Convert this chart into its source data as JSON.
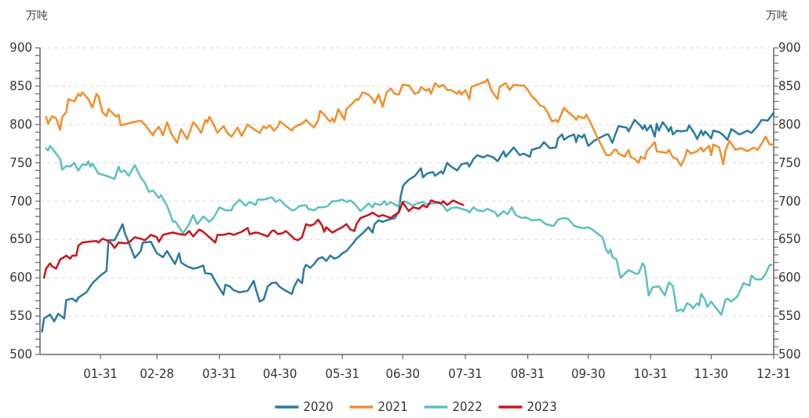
{
  "chart_data": {
    "type": "line",
    "ylabel": "万吨",
    "y2label": "万吨",
    "xlim": [
      "--01-01",
      "--12-31"
    ],
    "xticks": [
      {
        "value": "--01-31",
        "label": "01-31"
      },
      {
        "value": "--02-28",
        "label": "02-28"
      },
      {
        "value": "--03-31",
        "label": "03-31"
      },
      {
        "value": "--04-30",
        "label": "04-30"
      },
      {
        "value": "--05-31",
        "label": "05-31"
      },
      {
        "value": "--06-30",
        "label": "06-30"
      },
      {
        "value": "--07-31",
        "label": "07-31"
      },
      {
        "value": "--08-31",
        "label": "08-31"
      },
      {
        "value": "--09-30",
        "label": "09-30"
      },
      {
        "value": "--10-31",
        "label": "10-31"
      },
      {
        "value": "--11-30",
        "label": "11-30"
      },
      {
        "value": "--12-31",
        "label": "12-31"
      }
    ],
    "ylim": [
      500,
      900
    ],
    "yticks": [
      500,
      {
        "value": 510,
        "label": null
      },
      {
        "value": 520,
        "label": null
      },
      {
        "value": 530,
        "label": null
      },
      {
        "value": 540,
        "label": null
      },
      550,
      {
        "value": 560,
        "label": null
      },
      {
        "value": 570,
        "label": null
      },
      {
        "value": 580,
        "label": null
      },
      {
        "value": 590,
        "label": null
      },
      600,
      {
        "value": 610,
        "label": null
      },
      {
        "value": 620,
        "label": null
      },
      {
        "value": 630,
        "label": null
      },
      {
        "value": 640,
        "label": null
      },
      650,
      {
        "value": 660,
        "label": null
      },
      {
        "value": 670,
        "label": null
      },
      {
        "value": 680,
        "label": null
      },
      {
        "value": 690,
        "label": null
      },
      700,
      {
        "value": 710,
        "label": null
      },
      {
        "value": 720,
        "label": null
      },
      {
        "value": 730,
        "label": null
      },
      {
        "value": 740,
        "label": null
      },
      750,
      {
        "value": 760,
        "label": null
      },
      {
        "value": 770,
        "label": null
      },
      {
        "value": 780,
        "label": null
      },
      {
        "value": 790,
        "label": null
      },
      800,
      {
        "value": 810,
        "label": null
      },
      {
        "value": 820,
        "label": null
      },
      {
        "value": 830,
        "label": null
      },
      {
        "value": 840,
        "label": null
      },
      850,
      {
        "value": 860,
        "label": null
      },
      {
        "value": 870,
        "label": null
      },
      {
        "value": 880,
        "label": null
      },
      {
        "value": 890,
        "label": null
      },
      900
    ],
    "y2lim": [
      500,
      900
    ],
    "y2ticks": [
      500,
      {
        "value": 510,
        "label": null
      },
      {
        "value": 520,
        "label": null
      },
      {
        "value": 530,
        "label": null
      },
      {
        "value": 540,
        "label": null
      },
      550,
      {
        "value": 560,
        "label": null
      },
      {
        "value": 570,
        "label": null
      },
      {
        "value": 580,
        "label": null
      },
      {
        "value": 590,
        "label": null
      },
      600,
      {
        "value": 610,
        "label": null
      },
      {
        "value": 620,
        "label": null
      },
      {
        "value": 630,
        "label": null
      },
      {
        "value": 640,
        "label": null
      },
      650,
      {
        "value": 660,
        "label": null
      },
      {
        "value": 670,
        "label": null
      },
      {
        "value": 680,
        "label": null
      },
      {
        "value": 690,
        "label": null
      },
      700,
      {
        "value": 710,
        "label": null
      },
      {
        "value": 720,
        "label": null
      },
      {
        "value": 730,
        "label": null
      },
      {
        "value": 740,
        "label": null
      },
      750,
      {
        "value": 760,
        "label": null
      },
      {
        "value": 770,
        "label": null
      },
      {
        "value": 780,
        "label": null
      },
      {
        "value": 790,
        "label": null
      },
      800,
      {
        "value": 810,
        "label": null
      },
      {
        "value": 820,
        "label": null
      },
      {
        "value": 830,
        "label": null
      },
      {
        "value": 840,
        "label": null
      },
      850,
      {
        "value": 860,
        "label": null
      },
      {
        "value": 870,
        "label": null
      },
      {
        "value": 880,
        "label": null
      },
      {
        "value": 890,
        "label": null
      },
      900
    ],
    "grid": "y",
    "legend": "bottom",
    "marker": "none",
    "line_style": "solid",
    "series": [
      {
        "name": "2020",
        "color": "#2a7aa1",
        "x": [
          "--01-02",
          "--01-03",
          "--01-06",
          "--01-08",
          "--01-10",
          "--01-13",
          "--01-14",
          "--01-17",
          "--01-19",
          "--01-20",
          "--01-24",
          "--01-27",
          "--01-31",
          "--02-03",
          "--02-04",
          "--02-07",
          "--02-11",
          "--02-12",
          "--02-14",
          "--02-17",
          "--02-20",
          "--02-21",
          "--02-25",
          "--02-28",
          "--03-03",
          "--03-05",
          "--03-09",
          "--03-11",
          "--03-12",
          "--03-15",
          "--03-18",
          "--03-20",
          "--03-23",
          "--03-24",
          "--03-27",
          "--03-29",
          "--04-02",
          "--04-03",
          "--04-05",
          "--04-07",
          "--04-10",
          "--04-14",
          "--04-17",
          "--04-18",
          "--04-20",
          "--04-22",
          "--04-24",
          "--04-26",
          "--04-28",
          "--04-30",
          "--05-03",
          "--05-06",
          "--05-07",
          "--05-09",
          "--05-11",
          "--05-12",
          "--05-13",
          "--05-15",
          "--05-17",
          "--05-19",
          "--05-21",
          "--05-23",
          "--05-25",
          "--05-27",
          "--05-29",
          "--05-31",
          "--06-02",
          "--06-05",
          "--06-07",
          "--06-10",
          "--06-13",
          "--06-15",
          "--06-16",
          "--06-18",
          "--06-20",
          "--06-23",
          "--06-26",
          "--06-28",
          "--06-29",
          "--06-30",
          "--07-01",
          "--07-03",
          "--07-06",
          "--07-09",
          "--07-10",
          "--07-12",
          "--07-15",
          "--07-16",
          "--07-19",
          "--07-20",
          "--07-22",
          "--07-24",
          "--07-27",
          "--07-29",
          "--08-01",
          "--08-02",
          "--08-04",
          "--08-06",
          "--08-09",
          "--08-11",
          "--08-14",
          "--08-16",
          "--08-19",
          "--08-20",
          "--08-24",
          "--08-27",
          "--08-29",
          "--09-01",
          "--09-02",
          "--09-06",
          "--09-08",
          "--09-11",
          "--09-14",
          "--09-15",
          "--09-17",
          "--09-18",
          "--09-20",
          "--09-23",
          "--09-24",
          "--09-25",
          "--09-27",
          "--09-28",
          "--09-30",
          "--10-03",
          "--10-09",
          "--10-10",
          "--10-12",
          "--10-13",
          "--10-15",
          "--10-19",
          "--10-20",
          "--10-23",
          "--10-26",
          "--10-27",
          "--10-28",
          "--10-29",
          "--10-31",
          "--11-02",
          "--11-03",
          "--11-04",
          "--11-06",
          "--11-08",
          "--11-09",
          "--11-10",
          "--11-11",
          "--11-13",
          "--11-15",
          "--11-18",
          "--11-19",
          "--11-22",
          "--11-23",
          "--11-25",
          "--11-26",
          "--11-27",
          "--11-30",
          "--12-01",
          "--12-04",
          "--12-06",
          "--12-08",
          "--12-10",
          "--12-14",
          "--12-18",
          "--12-20",
          "--12-23",
          "--12-25",
          "--12-28",
          "--12-31"
        ],
        "values": [
          530,
          547,
          552,
          543,
          553,
          547,
          571,
          573,
          569,
          574,
          581,
          593,
          603,
          609,
          649,
          649,
          670,
          659,
          646,
          626,
          635,
          646,
          647,
          632,
          627,
          635,
          618,
          632,
          620,
          615,
          612,
          613,
          616,
          606,
          605,
          595,
          578,
          591,
          589,
          584,
          581,
          583,
          596,
          586,
          569,
          572,
          589,
          593,
          594,
          588,
          583,
          579,
          588,
          598,
          593,
          612,
          617,
          613,
          618,
          625,
          627,
          622,
          629,
          625,
          627,
          632,
          635,
          644,
          651,
          658,
          666,
          659,
          670,
          675,
          673,
          676,
          678,
          687,
          707,
          719,
          723,
          728,
          733,
          743,
          731,
          736,
          738,
          733,
          739,
          736,
          750,
          745,
          740,
          748,
          750,
          745,
          755,
          760,
          757,
          760,
          757,
          752,
          765,
          758,
          770,
          760,
          762,
          758,
          767,
          770,
          777,
          769,
          770,
          782,
          787,
          780,
          784,
          787,
          777,
          786,
          783,
          787,
          772,
          779,
          787,
          787,
          776,
          784,
          798,
          796,
          791,
          806,
          798,
          794,
          799,
          792,
          799,
          784,
          801,
          792,
          803,
          796,
          791,
          797,
          787,
          792,
          791,
          792,
          799,
          787,
          781,
          792,
          786,
          791,
          782,
          792,
          790,
          786,
          780,
          794,
          787,
          792,
          789,
          798,
          806,
          805,
          815
        ]
      },
      {
        "name": "2021",
        "color": "#f28e2b",
        "x": [
          "--01-04",
          "--01-05",
          "--01-07",
          "--01-09",
          "--01-11",
          "--01-12",
          "--01-14",
          "--01-15",
          "--01-18",
          "--01-20",
          "--01-21",
          "--01-22",
          "--01-25",
          "--01-27",
          "--01-29",
          "--01-30",
          "--02-01",
          "--02-03",
          "--02-04",
          "--02-06",
          "--02-08",
          "--02-09",
          "--02-10",
          "--02-18",
          "--02-20",
          "--02-22",
          "--02-26",
          "--02-27",
          "--03-01",
          "--03-03",
          "--03-05",
          "--03-07",
          "--03-10",
          "--03-12",
          "--03-15",
          "--03-18",
          "--03-20",
          "--03-22",
          "--03-24",
          "--03-25",
          "--03-26",
          "--03-28",
          "--03-30",
          "--04-02",
          "--04-04",
          "--04-06",
          "--04-09",
          "--04-11",
          "--04-14",
          "--04-17",
          "--04-20",
          "--04-22",
          "--04-23",
          "--04-25",
          "--04-27",
          "--04-29",
          "--04-30",
          "--05-03",
          "--05-06",
          "--05-07",
          "--05-09",
          "--05-11",
          "--05-13",
          "--05-14",
          "--05-17",
          "--05-19",
          "--05-20",
          "--05-22",
          "--05-24",
          "--05-25",
          "--05-26",
          "--05-27",
          "--05-29",
          "--05-31",
          "--06-01",
          "--06-02",
          "--06-04",
          "--06-07",
          "--06-08",
          "--06-10",
          "--06-13",
          "--06-15",
          "--06-16",
          "--06-18",
          "--06-20",
          "--06-22",
          "--06-24",
          "--06-26",
          "--06-28",
          "--06-30",
          "--07-03",
          "--07-06",
          "--07-08",
          "--07-09",
          "--07-11",
          "--07-12",
          "--07-13",
          "--07-14",
          "--07-16",
          "--07-18",
          "--07-20",
          "--07-22",
          "--07-24",
          "--07-27",
          "--07-28",
          "--07-29",
          "--07-31",
          "--08-02",
          "--08-03",
          "--08-06",
          "--08-10",
          "--08-11",
          "--08-13",
          "--08-16",
          "--08-17",
          "--08-20",
          "--08-22",
          "--08-24",
          "--08-27",
          "--08-29",
          "--08-31",
          "--09-02",
          "--09-04",
          "--09-06",
          "--09-08",
          "--09-10",
          "--09-12",
          "--09-14",
          "--09-15",
          "--09-18",
          "--09-20",
          "--09-23",
          "--09-24",
          "--09-25",
          "--09-28",
          "--09-29",
          "--10-01",
          "--10-04",
          "--10-09",
          "--10-11",
          "--10-13",
          "--10-14",
          "--10-15",
          "--10-18",
          "--10-20",
          "--10-21",
          "--10-23",
          "--10-25",
          "--10-26",
          "--10-28",
          "--10-29",
          "--11-02",
          "--11-03",
          "--11-08",
          "--11-09",
          "--11-11",
          "--11-13",
          "--11-15",
          "--11-17",
          "--11-18",
          "--11-20",
          "--11-23",
          "--11-25",
          "--11-26",
          "--11-29",
          "--11-30",
          "--12-01",
          "--12-04",
          "--12-06",
          "--12-07",
          "--12-09",
          "--12-12",
          "--12-15",
          "--12-18",
          "--12-21",
          "--12-23",
          "--12-25",
          "--12-27",
          "--12-29",
          "--12-31"
        ],
        "values": [
          810,
          801,
          811,
          808,
          793,
          810,
          816,
          833,
          830,
          840,
          837,
          842,
          833,
          822,
          840,
          837,
          816,
          811,
          820,
          815,
          810,
          813,
          799,
          804,
          805,
          800,
          786,
          791,
          797,
          786,
          803,
          789,
          776,
          794,
          781,
          803,
          797,
          789,
          806,
          803,
          810,
          801,
          789,
          798,
          789,
          784,
          796,
          785,
          800,
          794,
          789,
          798,
          795,
          799,
          792,
          797,
          804,
          798,
          792,
          796,
          799,
          801,
          806,
          803,
          796,
          806,
          818,
          813,
          806,
          804,
          808,
          803,
          820,
          811,
          806,
          820,
          825,
          833,
          832,
          842,
          839,
          833,
          828,
          839,
          823,
          842,
          847,
          840,
          839,
          852,
          851,
          840,
          842,
          849,
          845,
          844,
          847,
          840,
          854,
          849,
          852,
          845,
          845,
          840,
          844,
          839,
          845,
          833,
          849,
          852,
          856,
          859,
          844,
          833,
          849,
          854,
          845,
          852,
          851,
          851,
          845,
          837,
          832,
          825,
          823,
          815,
          804,
          806,
          803,
          822,
          816,
          810,
          806,
          811,
          808,
          813,
          803,
          786,
          760,
          760,
          767,
          767,
          762,
          758,
          767,
          758,
          755,
          750,
          758,
          755,
          765,
          777,
          765,
          763,
          767,
          757,
          755,
          746,
          757,
          767,
          762,
          765,
          770,
          765,
          772,
          760,
          774,
          770,
          748,
          765,
          779,
          767,
          769,
          765,
          770,
          767,
          775,
          784,
          774,
          774
        ]
      },
      {
        "name": "2022",
        "color": "#5cc0c0",
        "x": [
          "--01-04",
          "--01-05",
          "--01-06",
          "--01-09",
          "--01-11",
          "--01-12",
          "--01-14",
          "--01-16",
          "--01-18",
          "--01-19",
          "--01-20",
          "--01-22",
          "--01-24",
          "--01-25",
          "--01-26",
          "--01-27",
          "--01-30",
          "--02-03",
          "--02-07",
          "--02-09",
          "--02-10",
          "--02-12",
          "--02-14",
          "--02-17",
          "--02-20",
          "--02-22",
          "--02-24",
          "--02-26",
          "--03-01",
          "--03-02",
          "--03-05",
          "--03-08",
          "--03-09",
          "--03-13",
          "--03-16",
          "--03-18",
          "--03-20",
          "--03-23",
          "--03-26",
          "--03-28",
          "--03-31",
          "--04-03",
          "--04-06",
          "--04-07",
          "--04-10",
          "--04-13",
          "--04-15",
          "--04-18",
          "--04-19",
          "--04-22",
          "--04-26",
          "--04-28",
          "--04-30",
          "--05-03",
          "--05-06",
          "--05-07",
          "--05-10",
          "--05-13",
          "--05-14",
          "--05-17",
          "--05-19",
          "--05-22",
          "--05-24",
          "--05-25",
          "--05-26",
          "--05-28",
          "--05-31",
          "--06-02",
          "--06-04",
          "--06-06",
          "--06-09",
          "--06-11",
          "--06-13",
          "--06-15",
          "--06-16",
          "--06-19",
          "--06-21",
          "--06-22",
          "--06-24",
          "--06-27",
          "--07-01",
          "--07-03",
          "--07-05",
          "--07-07",
          "--07-10",
          "--07-12",
          "--07-15",
          "--07-18",
          "--07-20",
          "--07-22",
          "--07-24",
          "--07-27",
          "--07-29",
          "--08-01",
          "--08-02",
          "--08-04",
          "--08-06",
          "--08-09",
          "--08-11",
          "--08-15",
          "--08-16",
          "--08-19",
          "--08-21",
          "--08-23",
          "--08-25",
          "--08-28",
          "--08-30",
          "--09-02",
          "--09-06",
          "--09-09",
          "--09-12",
          "--09-13",
          "--09-15",
          "--09-18",
          "--09-20",
          "--09-23",
          "--09-25",
          "--09-28",
          "--09-30",
          "--10-02",
          "--10-04",
          "--10-07",
          "--10-09",
          "--10-10",
          "--10-11",
          "--10-12",
          "--10-14",
          "--10-16",
          "--10-20",
          "--10-24",
          "--10-25",
          "--10-27",
          "--10-28",
          "--10-30",
          "--11-01",
          "--11-02",
          "--11-04",
          "--11-07",
          "--11-09",
          "--11-11",
          "--11-13",
          "--11-15",
          "--11-16",
          "--11-18",
          "--11-20",
          "--11-21",
          "--11-23",
          "--11-24",
          "--11-25",
          "--11-27",
          "--11-28",
          "--11-30",
          "--12-02",
          "--12-05",
          "--12-07",
          "--12-08",
          "--12-10",
          "--12-13",
          "--12-14",
          "--12-16",
          "--12-19",
          "--12-20",
          "--12-22",
          "--12-25",
          "--12-27",
          "--12-29",
          "--12-30"
        ],
        "values": [
          769,
          766,
          772,
          762,
          755,
          741,
          746,
          745,
          750,
          745,
          740,
          748,
          747,
          752,
          745,
          749,
          736,
          733,
          729,
          745,
          738,
          740,
          733,
          747,
          731,
          724,
          712,
          714,
          704,
          708,
          694,
          673,
          674,
          658,
          670,
          682,
          670,
          680,
          673,
          678,
          692,
          688,
          688,
          694,
          702,
          694,
          699,
          695,
          702,
          702,
          705,
          699,
          702,
          694,
          688,
          688,
          694,
          695,
          690,
          688,
          692,
          692,
          694,
          697,
          700,
          700,
          702,
          699,
          701,
          697,
          687,
          692,
          697,
          692,
          697,
          695,
          700,
          695,
          699,
          694,
          700,
          697,
          694,
          697,
          699,
          696,
          697,
          699,
          694,
          687,
          691,
          692,
          690,
          688,
          685,
          692,
          688,
          687,
          690,
          685,
          680,
          687,
          683,
          692,
          682,
          678,
          679,
          675,
          676,
          670,
          668,
          668,
          676,
          678,
          677,
          668,
          666,
          665,
          666,
          663,
          659,
          653,
          636,
          632,
          637,
          627,
          624,
          600,
          610,
          605,
          606,
          619,
          615,
          577,
          588,
          588,
          589,
          577,
          594,
          589,
          556,
          559,
          556,
          567,
          564,
          560,
          567,
          564,
          579,
          571,
          562,
          569,
          562,
          552,
          571,
          573,
          569,
          576,
          581,
          593,
          590,
          603,
          598,
          598,
          605,
          617,
          617
        ]
      },
      {
        "name": "2023",
        "color": "#c8161d",
        "x": [
          "--01-03",
          "--01-04",
          "--01-06",
          "--01-07",
          "--01-09",
          "--01-11",
          "--01-13",
          "--01-14",
          "--01-16",
          "--01-17",
          "--01-19",
          "--01-20",
          "--01-22",
          "--01-25",
          "--01-29",
          "--01-30",
          "--02-01",
          "--02-03",
          "--02-05",
          "--02-07",
          "--02-09",
          "--02-13",
          "--02-15",
          "--02-17",
          "--02-20",
          "--02-22",
          "--02-25",
          "--02-28",
          "--03-01",
          "--03-03",
          "--03-06",
          "--03-08",
          "--03-11",
          "--03-14",
          "--03-16",
          "--03-18",
          "--03-21",
          "--03-23",
          "--03-26",
          "--03-29",
          "--03-30",
          "--04-02",
          "--04-05",
          "--04-07",
          "--04-11",
          "--04-14",
          "--04-15",
          "--04-18",
          "--04-20",
          "--04-24",
          "--04-26",
          "--04-27",
          "--04-29",
          "--05-01",
          "--05-03",
          "--05-06",
          "--05-07",
          "--05-09",
          "--05-11",
          "--05-13",
          "--05-15",
          "--05-17",
          "--05-19",
          "--05-21",
          "--05-22",
          "--05-23",
          "--05-26",
          "--05-28",
          "--05-31",
          "--06-02",
          "--06-04",
          "--06-06",
          "--06-07",
          "--06-09",
          "--06-13",
          "--06-15",
          "--06-18",
          "--06-20",
          "--06-22",
          "--06-24",
          "--06-26",
          "--06-28",
          "--06-30",
          "--07-01",
          "--07-03",
          "--07-05",
          "--07-08",
          "--07-10",
          "--07-12",
          "--07-14",
          "--07-16",
          "--07-19",
          "--07-20",
          "--07-22",
          "--07-23",
          "--07-25",
          "--07-28",
          "--07-30"
        ],
        "values": [
          600,
          612,
          619,
          615,
          612,
          624,
          627,
          629,
          625,
          629,
          629,
          642,
          646,
          647,
          648,
          646,
          651,
          649,
          646,
          639,
          646,
          645,
          648,
          653,
          651,
          649,
          656,
          653,
          647,
          656,
          658,
          659,
          657,
          656,
          661,
          654,
          663,
          660,
          653,
          646,
          656,
          656,
          658,
          656,
          660,
          665,
          657,
          659,
          658,
          654,
          661,
          662,
          657,
          658,
          661,
          654,
          651,
          649,
          653,
          670,
          668,
          670,
          676,
          668,
          660,
          666,
          659,
          662,
          666,
          670,
          663,
          661,
          670,
          678,
          682,
          685,
          680,
          682,
          680,
          678,
          682,
          685,
          699,
          694,
          687,
          692,
          690,
          695,
          692,
          701,
          699,
          697,
          700,
          695,
          697,
          701,
          697,
          695
        ]
      }
    ]
  }
}
